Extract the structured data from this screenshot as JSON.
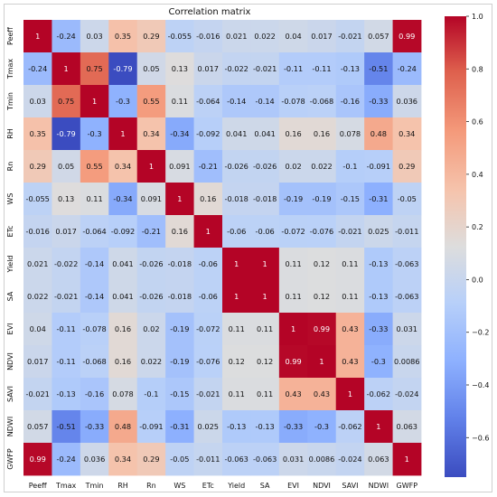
{
  "chart_data": {
    "type": "heatmap",
    "title": "Correlation matrix",
    "variables": [
      "Peeff",
      "Tmax",
      "Tmin",
      "RH",
      "Rn",
      "WS",
      "ETc",
      "Yield",
      "SA",
      "EVI",
      "NDVI",
      "SAVI",
      "NDWI",
      "GWFP"
    ],
    "values": [
      [
        1,
        -0.24,
        0.03,
        0.35,
        0.29,
        -0.055,
        -0.016,
        0.021,
        0.022,
        0.04,
        0.017,
        -0.021,
        0.057,
        0.99
      ],
      [
        -0.24,
        1,
        0.75,
        -0.79,
        0.05,
        0.13,
        0.017,
        -0.022,
        -0.021,
        -0.11,
        -0.11,
        -0.13,
        -0.51,
        -0.24
      ],
      [
        0.03,
        0.75,
        1,
        -0.3,
        0.55,
        0.11,
        -0.064,
        -0.14,
        -0.14,
        -0.078,
        -0.068,
        -0.16,
        -0.33,
        0.036
      ],
      [
        0.35,
        -0.79,
        -0.3,
        1,
        0.34,
        -0.34,
        -0.092,
        0.041,
        0.041,
        0.16,
        0.16,
        0.078,
        0.48,
        0.34
      ],
      [
        0.29,
        0.05,
        0.55,
        0.34,
        1,
        0.091,
        -0.21,
        -0.026,
        -0.026,
        0.02,
        0.022,
        -0.1,
        -0.091,
        0.29
      ],
      [
        -0.055,
        0.13,
        0.11,
        -0.34,
        0.091,
        1,
        0.16,
        -0.018,
        -0.018,
        -0.19,
        -0.19,
        -0.15,
        -0.31,
        -0.05
      ],
      [
        -0.016,
        0.017,
        -0.064,
        -0.092,
        -0.21,
        0.16,
        1,
        -0.06,
        -0.06,
        -0.072,
        -0.076,
        -0.021,
        0.025,
        -0.011
      ],
      [
        0.021,
        -0.022,
        -0.14,
        0.041,
        -0.026,
        -0.018,
        -0.06,
        1,
        1,
        0.11,
        0.12,
        0.11,
        -0.13,
        -0.063
      ],
      [
        0.022,
        -0.021,
        -0.14,
        0.041,
        -0.026,
        -0.018,
        -0.06,
        1,
        1,
        0.11,
        0.12,
        0.11,
        -0.13,
        -0.063
      ],
      [
        0.04,
        -0.11,
        -0.078,
        0.16,
        0.02,
        -0.19,
        -0.072,
        0.11,
        0.11,
        1,
        0.99,
        0.43,
        -0.33,
        0.031
      ],
      [
        0.017,
        -0.11,
        -0.068,
        0.16,
        0.022,
        -0.19,
        -0.076,
        0.12,
        0.12,
        0.99,
        1,
        0.43,
        -0.3,
        0.0086
      ],
      [
        -0.021,
        -0.13,
        -0.16,
        0.078,
        -0.1,
        -0.15,
        -0.021,
        0.11,
        0.11,
        0.43,
        0.43,
        1,
        -0.062,
        -0.024
      ],
      [
        0.057,
        -0.51,
        -0.33,
        0.48,
        -0.091,
        -0.31,
        0.025,
        -0.13,
        -0.13,
        -0.33,
        -0.3,
        -0.062,
        1,
        0.063
      ],
      [
        0.99,
        -0.24,
        0.036,
        0.34,
        0.29,
        -0.05,
        -0.011,
        -0.063,
        -0.063,
        0.031,
        0.0086,
        -0.024,
        0.063,
        1
      ]
    ],
    "colorbar": {
      "range": [
        -0.75,
        1
      ],
      "ticks": [
        -0.6,
        -0.4,
        -0.2,
        0,
        0.2,
        0.4,
        0.6,
        0.8,
        1.0
      ],
      "tick_labels": [
        "−0.6",
        "−0.4",
        "−0.2",
        "0.0",
        "0.2",
        "0.4",
        "0.6",
        "0.8",
        "1.0"
      ],
      "colormap": "coolwarm"
    },
    "legend_placement": "right",
    "grid": false
  }
}
